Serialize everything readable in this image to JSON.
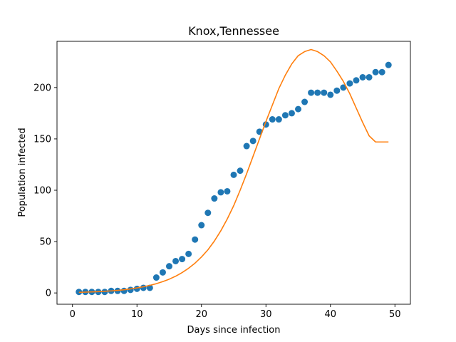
{
  "chart_data": {
    "type": "scatter",
    "title": "Knox,Tennessee",
    "xlabel": "Days since infection",
    "ylabel": "Population infected",
    "xlim": [
      -2.4,
      52.4
    ],
    "ylim": [
      -11,
      245
    ],
    "xticks": [
      0,
      10,
      20,
      30,
      40,
      50
    ],
    "yticks": [
      0,
      50,
      100,
      150,
      200
    ],
    "grid": false,
    "legend": "none",
    "series": [
      {
        "kind": "scatter",
        "color": "#1f77b4",
        "x": [
          1,
          2,
          3,
          4,
          5,
          6,
          7,
          8,
          9,
          10,
          11,
          12,
          13,
          14,
          15,
          16,
          17,
          18,
          19,
          20,
          21,
          22,
          23,
          24,
          25,
          26,
          27,
          28,
          29,
          30,
          31,
          32,
          33,
          34,
          35,
          36,
          37,
          38,
          39,
          40,
          41,
          42,
          43,
          44,
          45,
          46,
          47,
          48,
          49
        ],
        "y": [
          1,
          1,
          1,
          1,
          1,
          2,
          2,
          2,
          3,
          4,
          5,
          5,
          15,
          20,
          26,
          31,
          33,
          38,
          52,
          66,
          78,
          92,
          98,
          99,
          115,
          119,
          143,
          148,
          157,
          164,
          169,
          169,
          173,
          175,
          179,
          186,
          195,
          195,
          195,
          193,
          197,
          200,
          204,
          207,
          210,
          210,
          215,
          215,
          222
        ]
      },
      {
        "kind": "line",
        "color": "#ff7f0e",
        "x": [
          1,
          2,
          3,
          4,
          5,
          6,
          7,
          8,
          9,
          10,
          11,
          12,
          13,
          14,
          15,
          16,
          17,
          18,
          19,
          20,
          21,
          22,
          23,
          24,
          25,
          26,
          27,
          28,
          29,
          30,
          31,
          32,
          33,
          34,
          35,
          36,
          37,
          38,
          39,
          40,
          41,
          42,
          43,
          44,
          45,
          46,
          47,
          48,
          49
        ],
        "y": [
          0.6,
          0.8,
          1.0,
          1.3,
          1.6,
          2.0,
          2.5,
          3.1,
          3.9,
          4.9,
          6.0,
          7.4,
          9.0,
          11.0,
          13.4,
          16.3,
          19.8,
          24.0,
          29.0,
          35.0,
          42.0,
          50.5,
          60.5,
          72,
          85,
          100,
          116,
          133,
          150,
          167,
          183,
          199,
          212,
          223,
          231,
          235,
          237,
          235,
          231,
          225,
          216,
          206,
          194,
          180,
          166,
          153,
          147,
          147,
          147
        ]
      }
    ]
  }
}
